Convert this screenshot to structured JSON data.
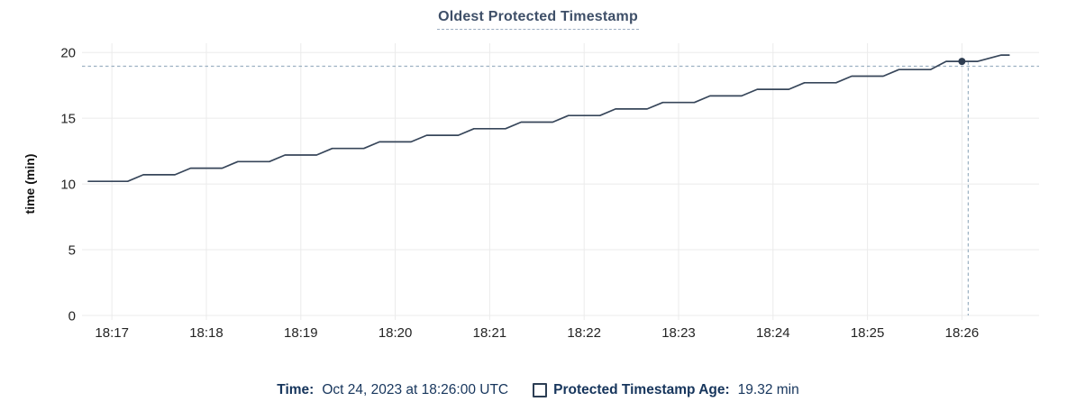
{
  "title_text": "Oldest Protected Timestamp",
  "colors": {
    "title": "#3e4f68",
    "title_underline": "#9badc2",
    "line": "#37465a",
    "dot": "#2e3d51",
    "grid": "#ebebeb",
    "crosshair": "#9cb1c2",
    "axis_text": "#242424",
    "footer_text": "#16355c"
  },
  "chart_data": {
    "type": "line",
    "title": "Oldest Protected Timestamp",
    "xlabel": "",
    "ylabel": "time (min)",
    "grid": true,
    "y_ticks": [
      0,
      5,
      10,
      15,
      20
    ],
    "ylim": [
      0,
      20.7
    ],
    "x_ticks": [
      "18:17",
      "18:18",
      "18:19",
      "18:20",
      "18:21",
      "18:22",
      "18:23",
      "18:24",
      "18:25",
      "18:26"
    ],
    "x_range": [
      "18:16:41",
      "18:26:49"
    ],
    "series": [
      {
        "name": "Protected Timestamp Age",
        "points": [
          [
            "18:16:45",
            10.2
          ],
          [
            "18:17:10",
            10.2
          ],
          [
            "18:17:20",
            10.7
          ],
          [
            "18:17:40",
            10.7
          ],
          [
            "18:17:50",
            11.2
          ],
          [
            "18:18:10",
            11.2
          ],
          [
            "18:18:20",
            11.7
          ],
          [
            "18:18:40",
            11.7
          ],
          [
            "18:18:50",
            12.2
          ],
          [
            "18:19:10",
            12.2
          ],
          [
            "18:19:20",
            12.7
          ],
          [
            "18:19:40",
            12.7
          ],
          [
            "18:19:50",
            13.2
          ],
          [
            "18:20:10",
            13.2
          ],
          [
            "18:20:20",
            13.7
          ],
          [
            "18:20:40",
            13.7
          ],
          [
            "18:20:50",
            14.2
          ],
          [
            "18:21:10",
            14.2
          ],
          [
            "18:21:20",
            14.7
          ],
          [
            "18:21:40",
            14.7
          ],
          [
            "18:21:50",
            15.2
          ],
          [
            "18:22:10",
            15.2
          ],
          [
            "18:22:20",
            15.7
          ],
          [
            "18:22:40",
            15.7
          ],
          [
            "18:22:50",
            16.2
          ],
          [
            "18:23:10",
            16.2
          ],
          [
            "18:23:20",
            16.7
          ],
          [
            "18:23:40",
            16.7
          ],
          [
            "18:23:50",
            17.2
          ],
          [
            "18:24:10",
            17.2
          ],
          [
            "18:24:20",
            17.7
          ],
          [
            "18:24:40",
            17.7
          ],
          [
            "18:24:50",
            18.2
          ],
          [
            "18:25:10",
            18.2
          ],
          [
            "18:25:20",
            18.7
          ],
          [
            "18:25:40",
            18.7
          ],
          [
            "18:25:50",
            19.32
          ],
          [
            "18:26:10",
            19.32
          ],
          [
            "18:26:25",
            19.8
          ],
          [
            "18:26:30",
            19.8
          ]
        ]
      }
    ],
    "hover": {
      "crosshair_time": "18:26:04",
      "crosshair_value": 18.95,
      "point_time": "18:26:00",
      "point_value": 19.32
    }
  },
  "legend": {
    "time_label": "Time:",
    "time_value": "Oct 24, 2023 at 18:26:00 UTC",
    "series_label": "Protected Timestamp Age:",
    "series_value": "19.32 min"
  }
}
